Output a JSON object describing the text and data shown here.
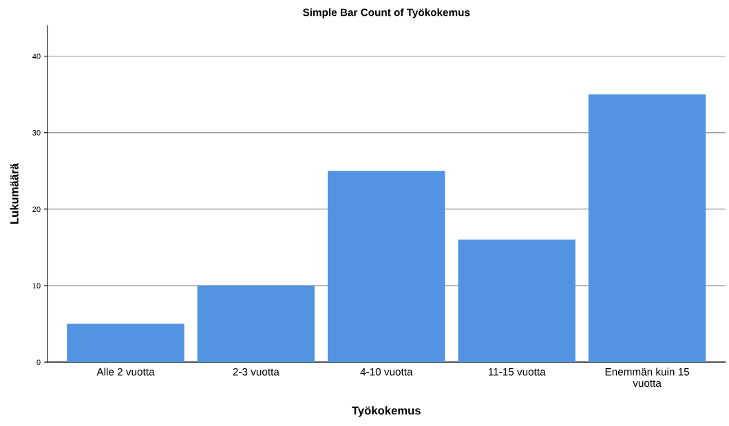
{
  "chart_data": {
    "type": "bar",
    "title": "Simple Bar Count of Työkokemus",
    "xlabel": "Työkokemus",
    "ylabel": "Lukumäärä",
    "categories": [
      "Alle 2 vuotta",
      "2-3 vuotta",
      "4-10 vuotta",
      "11-15 vuotta",
      "Enemmän kuin 15 vuotta"
    ],
    "values": [
      5,
      10,
      25,
      16,
      35
    ],
    "color": "#5294e2",
    "ylim": [
      0,
      44
    ],
    "yticks": [
      0,
      10,
      20,
      30,
      40
    ],
    "grid": "y"
  }
}
